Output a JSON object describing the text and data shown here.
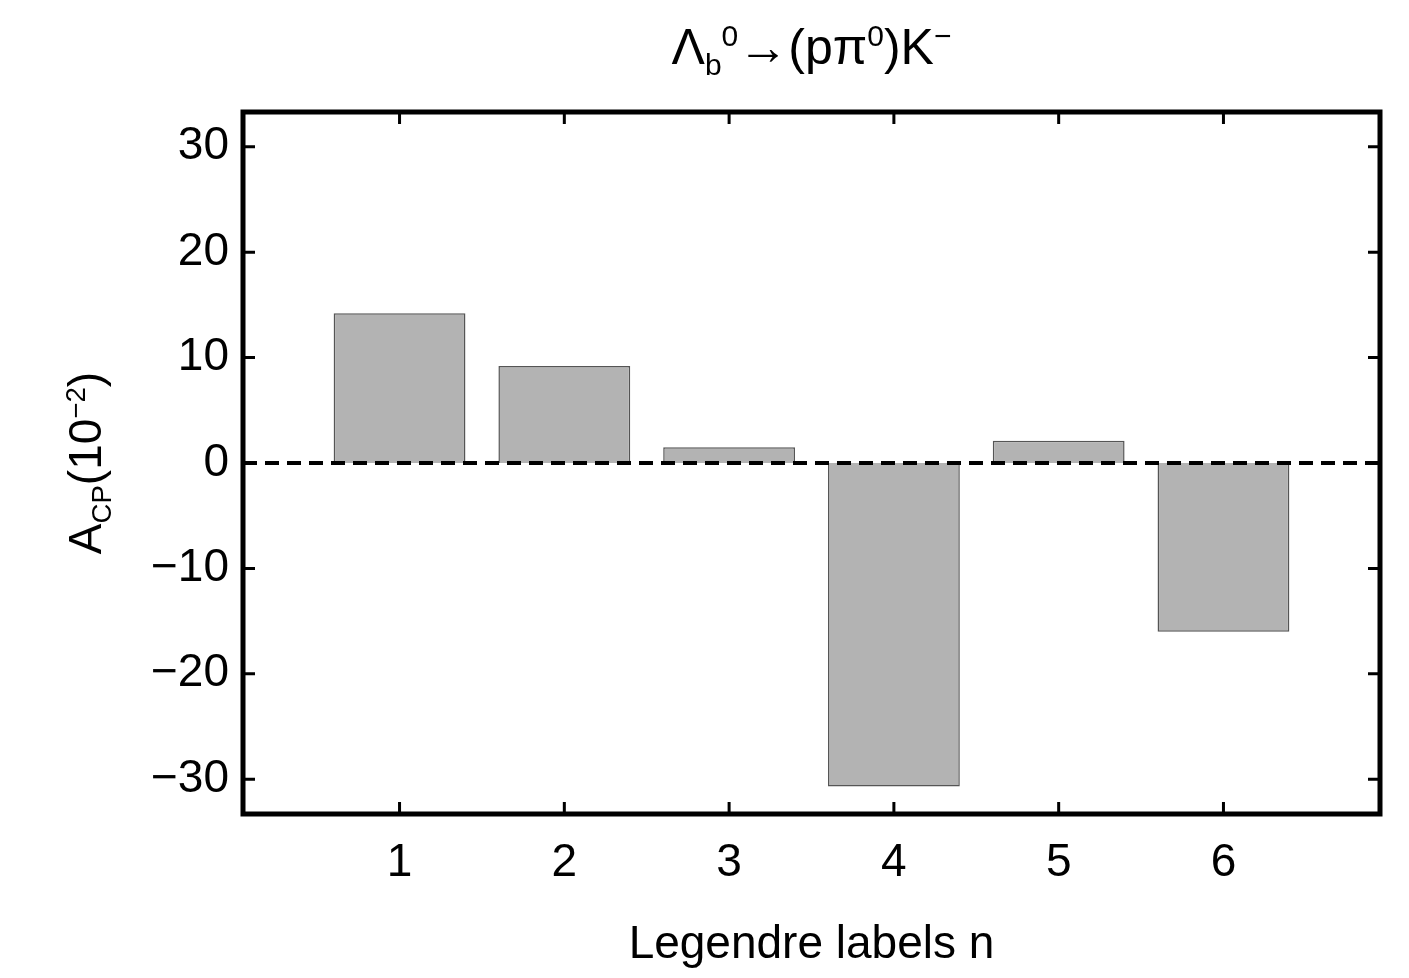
{
  "chart_data": {
    "type": "bar",
    "title": "Λ$_{b}$$^{0}$→(pπ$^{0}$)K$^{−}$",
    "xlabel": "Legendre labels n",
    "ylabel": "A$_{CP}$(10$^{−2}$)",
    "x": [
      1,
      2,
      3,
      4,
      5,
      6
    ],
    "values": [
      14.2,
      9.2,
      1.5,
      -30.7,
      2.1,
      -16.0
    ],
    "color": "#b3b3b3",
    "xlim": [
      0.05,
      6.95
    ],
    "xticks": [
      1,
      2,
      3,
      4,
      5,
      6
    ],
    "ylim": [
      -33.3,
      33.3
    ],
    "yticks": [
      -30,
      -20,
      -10,
      0,
      10,
      20,
      30
    ],
    "ref_lines": [
      {
        "axis": "y",
        "value": 0,
        "color": "#000000",
        "line_style": "dashed"
      }
    ],
    "grid": false,
    "legend": false
  }
}
